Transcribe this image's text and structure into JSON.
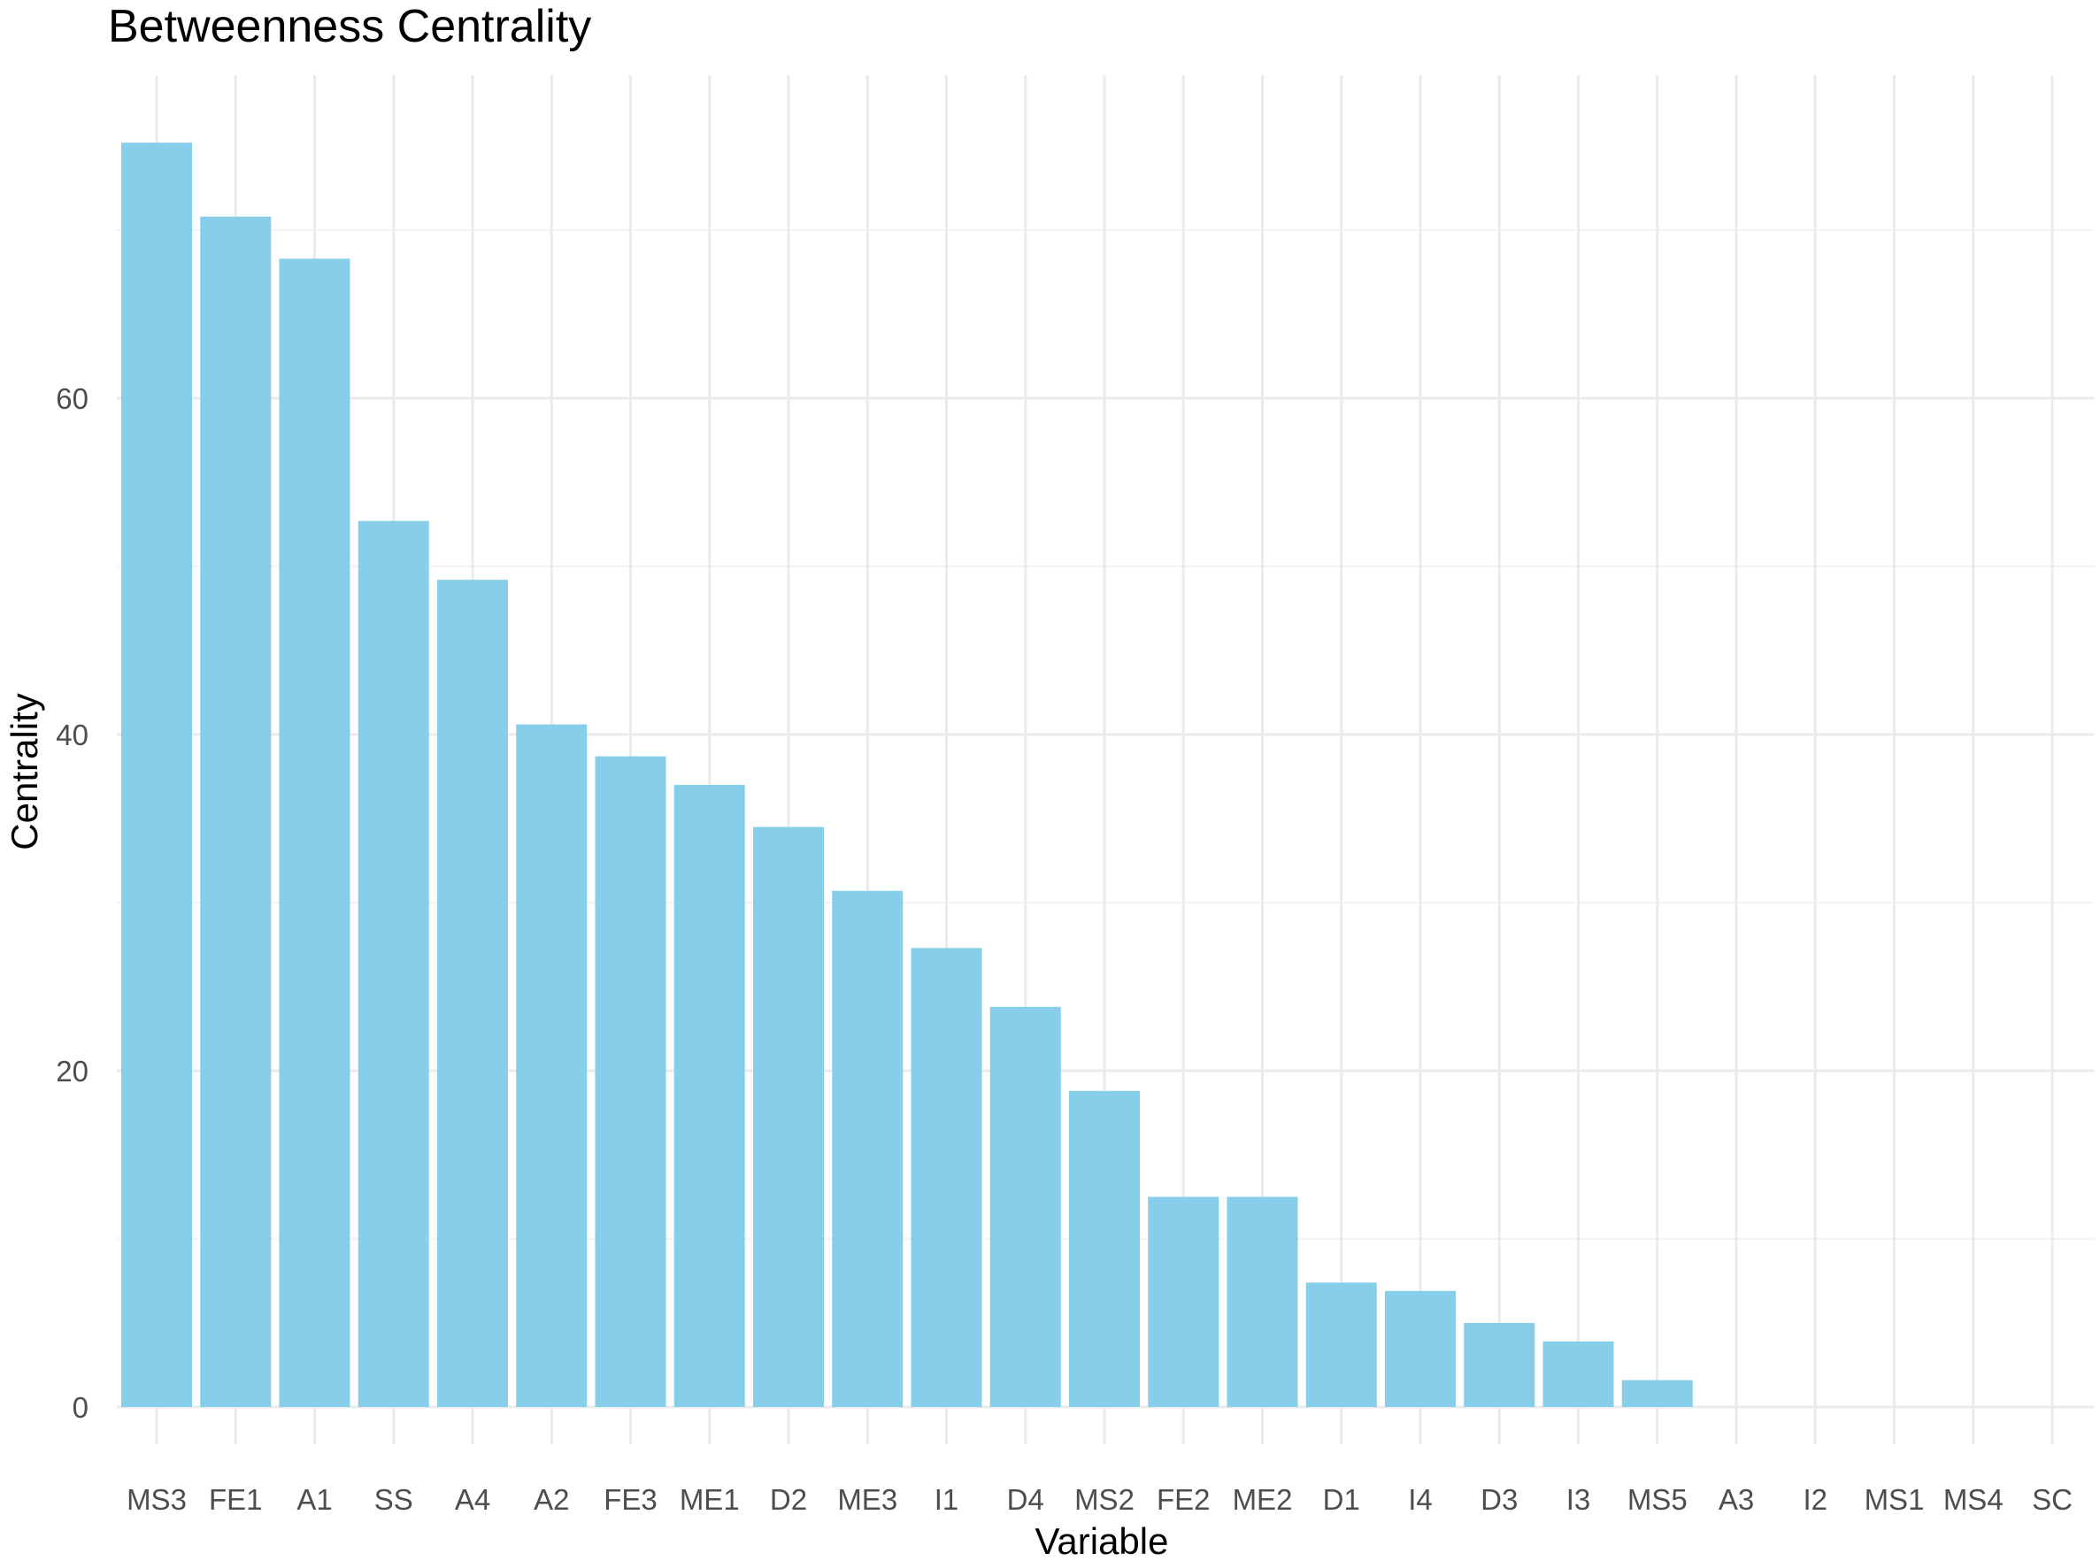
{
  "chart_data": {
    "type": "bar",
    "title": "Betweenness Centrality",
    "xlabel": "Variable",
    "ylabel": "Centrality",
    "categories": [
      "MS3",
      "FE1",
      "A1",
      "SS",
      "A4",
      "A2",
      "FE3",
      "ME1",
      "D2",
      "ME3",
      "I1",
      "D4",
      "MS2",
      "FE2",
      "ME2",
      "D1",
      "I4",
      "D3",
      "I3",
      "MS5",
      "A3",
      "I2",
      "MS1",
      "MS4",
      "SC"
    ],
    "values": [
      75.2,
      70.8,
      68.3,
      52.7,
      49.2,
      40.6,
      38.7,
      37.0,
      34.5,
      30.7,
      27.3,
      23.8,
      18.8,
      12.5,
      12.5,
      7.4,
      6.9,
      5.0,
      3.9,
      1.6,
      0,
      0,
      0,
      0,
      0
    ],
    "yticks": [
      0,
      20,
      40,
      60
    ],
    "ylim": [
      0,
      78.7
    ],
    "grid": true,
    "colors": {
      "bar": "#87CEEB",
      "grid_major": "#EBEBEB",
      "grid_minor": "#F3F3F3",
      "tick_text": "#4D4D4D"
    }
  }
}
